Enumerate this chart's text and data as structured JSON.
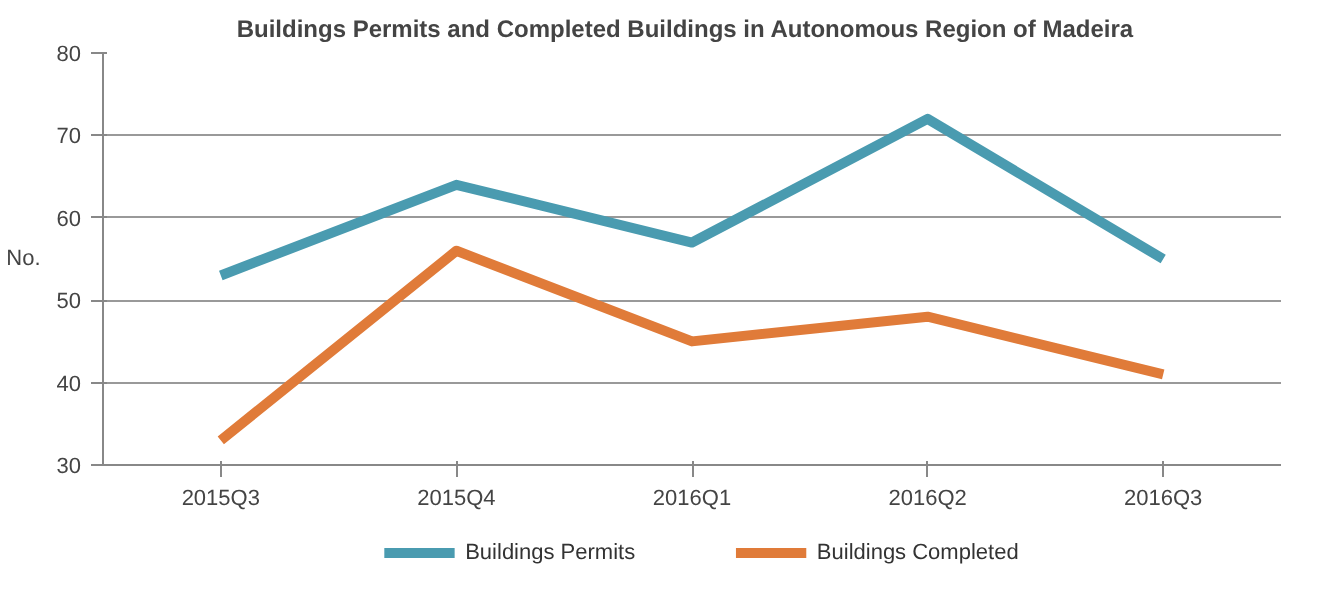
{
  "chart_data": {
    "type": "line",
    "title": "Buildings Permits and Completed Buildings  in Autonomous  Region of Madeira",
    "ylabel": "No.",
    "categories": [
      "2015Q3",
      "2015Q4",
      "2016Q1",
      "2016Q2",
      "2016Q3"
    ],
    "series": [
      {
        "name": "Buildings Permits",
        "color": "#4a9bb0",
        "values": [
          53,
          64,
          57,
          72,
          55
        ]
      },
      {
        "name": "Buildings Completed",
        "color": "#e07b39",
        "values": [
          33,
          56,
          45,
          48,
          41
        ]
      }
    ],
    "ylim": [
      30,
      80
    ],
    "yticks": [
      30,
      40,
      50,
      60,
      70,
      80
    ],
    "grid": "y",
    "legend": "bottom",
    "marker": "none",
    "line_style": "solid"
  }
}
